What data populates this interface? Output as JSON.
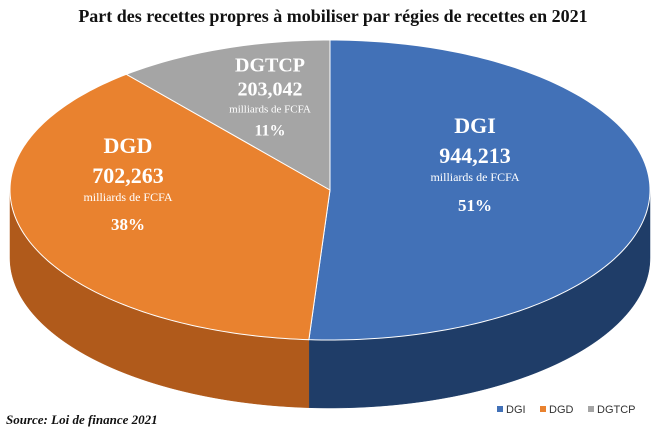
{
  "chart_data": {
    "type": "pie3d",
    "title": "Part des recettes propres à mobiliser par régies de recettes en 2021",
    "categories": [
      "DGI",
      "DGD",
      "DGTCP"
    ],
    "values": [
      944.213,
      702.263,
      203.042
    ],
    "value_labels": [
      "944,213",
      "702,263",
      "203,042"
    ],
    "unit": "milliards de FCFA",
    "percent_labels": [
      "51%",
      "38%",
      "11%"
    ],
    "colors": [
      "#4271b7",
      "#e9822f",
      "#a5a5a5"
    ],
    "side_colors": [
      "#1f3d68",
      "#b05a1b",
      "#7d7d7d"
    ],
    "legend": "bottom-right",
    "source": "Source: Loi de finance 2021"
  }
}
